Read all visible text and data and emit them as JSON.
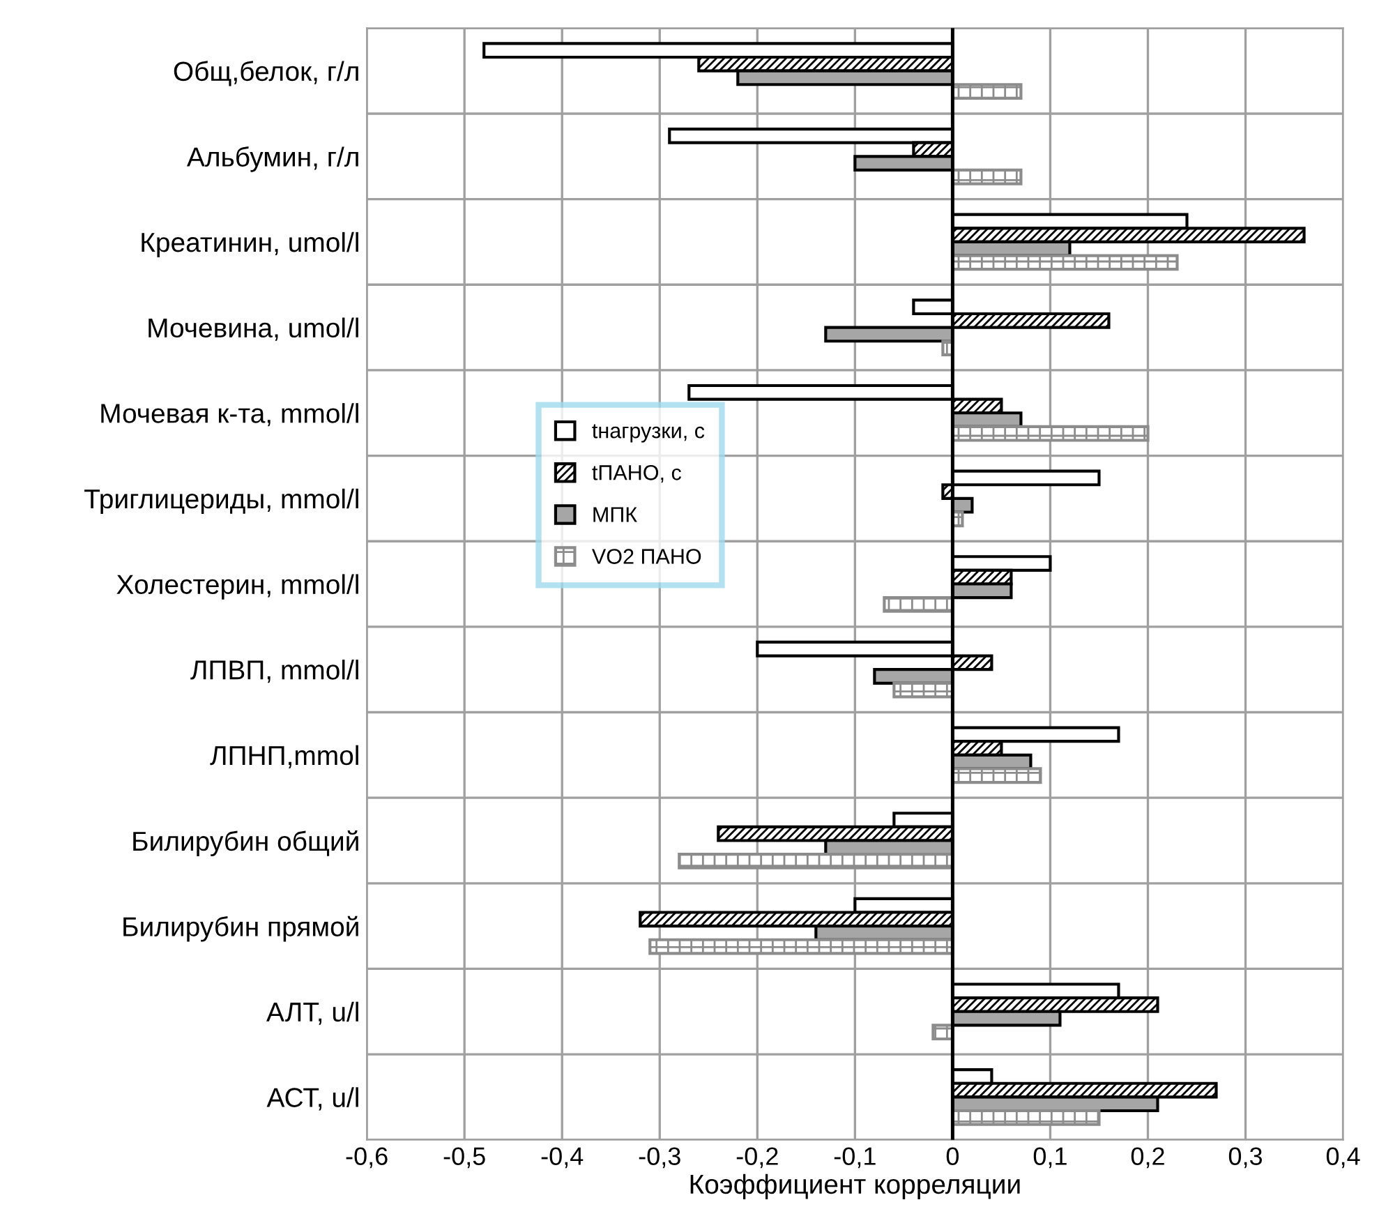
{
  "chart_data": {
    "type": "bar",
    "orientation": "horizontal",
    "xlabel": "Коэффициент корреляции",
    "categories": [
      "Общ,белок, г/л",
      "Альбумин, г/л",
      "Креатинин, umol/l",
      "Мочевина, umol/l",
      "Мочевая к-та, mmol/l",
      "Триглицериды, mmol/l",
      "Холестерин, mmol/l",
      "ЛПВП, mmol/l",
      "ЛПНП,mmol",
      "Билирубин общий",
      "Билирубин прямой",
      "АЛТ, u/l",
      "АСТ, u/l"
    ],
    "series": [
      {
        "name": "tнагрузки, с",
        "color": "#ffffff",
        "values": [
          -0.48,
          -0.29,
          0.24,
          -0.04,
          -0.27,
          0.15,
          0.1,
          -0.2,
          0.17,
          -0.06,
          -0.1,
          0.17,
          0.04
        ]
      },
      {
        "name": "tПАНО, с",
        "color": "#000000",
        "values": [
          -0.26,
          -0.04,
          0.36,
          0.16,
          0.05,
          -0.01,
          0.06,
          0.04,
          0.05,
          -0.24,
          -0.32,
          0.21,
          0.27
        ]
      },
      {
        "name": "МПК",
        "color": "#a6a6a6",
        "values": [
          -0.22,
          -0.1,
          0.12,
          -0.13,
          0.07,
          0.02,
          0.06,
          -0.08,
          0.08,
          -0.13,
          -0.14,
          0.11,
          0.21
        ]
      },
      {
        "name": "VO2 ПАНО",
        "color": "#8c8c8c",
        "values": [
          0.07,
          0.07,
          0.23,
          -0.01,
          0.2,
          0.01,
          -0.07,
          -0.06,
          0.09,
          -0.28,
          -0.31,
          -0.02,
          0.15
        ]
      }
    ],
    "xlim": [
      -0.6,
      0.4
    ],
    "xticks": [
      {
        "value": -0.6,
        "label": "-0,6"
      },
      {
        "value": -0.5,
        "label": "-0,5"
      },
      {
        "value": -0.4,
        "label": "-0,4"
      },
      {
        "value": -0.3,
        "label": "-0,3"
      },
      {
        "value": -0.2,
        "label": "-0,2"
      },
      {
        "value": -0.1,
        "label": "-0,1"
      },
      0,
      {
        "value": 0.1,
        "label": "0,1"
      },
      {
        "value": 0.2,
        "label": "0,2"
      },
      {
        "value": 0.3,
        "label": "0,3"
      },
      {
        "value": 0.4,
        "label": "0,4"
      }
    ],
    "grid": true,
    "legend": "left"
  }
}
